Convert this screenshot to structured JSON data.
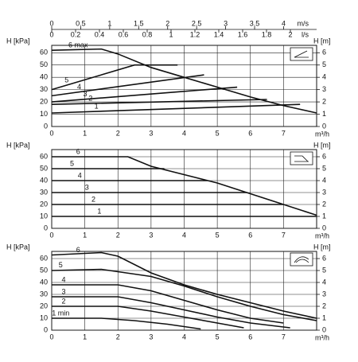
{
  "velocity_axis": {
    "label": "m/s",
    "xlim": [
      0,
      4.57
    ],
    "xticks": [
      0,
      0.5,
      1,
      1.5,
      2,
      2.5,
      3,
      3.5,
      4
    ]
  },
  "flow_ls_axis": {
    "label": "l/s",
    "xlim": [
      0,
      2.22
    ],
    "xticks": [
      0,
      0.2,
      0.4,
      0.6,
      0.8,
      1,
      1.2,
      1.4,
      1.6,
      1.8,
      2
    ]
  },
  "chart_data": [
    {
      "type": "line",
      "ylabel": "H [kPa]",
      "y2label": "H [m]",
      "xlabel": "m³/h",
      "grid": true,
      "color": "#111111",
      "xlim": [
        0,
        8
      ],
      "xticks": [
        0,
        1,
        2,
        3,
        4,
        5,
        6,
        7
      ],
      "ylim": [
        0,
        66
      ],
      "yticks": [
        0,
        10,
        20,
        30,
        40,
        50,
        60
      ],
      "y2lim": [
        0,
        6.6
      ],
      "y2ticks": [
        0,
        1,
        2,
        3,
        4,
        5,
        6
      ],
      "series": [
        {
          "name": "6 max",
          "x": [
            0,
            1.5,
            2,
            3,
            4,
            5,
            6,
            7,
            8
          ],
          "values": [
            62,
            63,
            59,
            48,
            40,
            32,
            24,
            17,
            11
          ]
        },
        {
          "name": "5",
          "x": [
            0,
            2.5,
            3.8
          ],
          "values": [
            30,
            50,
            50
          ]
        },
        {
          "name": "4",
          "x": [
            0,
            4.6
          ],
          "values": [
            25,
            42
          ]
        },
        {
          "name": "3",
          "x": [
            0,
            5.6
          ],
          "values": [
            20,
            32
          ]
        },
        {
          "name": "2",
          "x": [
            0,
            6.5
          ],
          "values": [
            18,
            22
          ]
        },
        {
          "name": "1",
          "x": [
            0,
            7.5
          ],
          "values": [
            11,
            18
          ]
        }
      ]
    },
    {
      "type": "line",
      "ylabel": "H [kPa]",
      "y2label": "H [m]",
      "xlabel": "m³/h",
      "grid": true,
      "color": "#111111",
      "xlim": [
        0,
        8
      ],
      "xticks": [
        0,
        1,
        2,
        3,
        4,
        5,
        6,
        7
      ],
      "ylim": [
        0,
        66
      ],
      "yticks": [
        0,
        10,
        20,
        30,
        40,
        50,
        60
      ],
      "y2lim": [
        0,
        6.6
      ],
      "y2ticks": [
        0,
        1,
        2,
        3,
        4,
        5,
        6
      ],
      "series": [
        {
          "name": "6",
          "x": [
            0,
            2.3,
            3,
            5,
            7,
            8
          ],
          "values": [
            60,
            60,
            52,
            38,
            20,
            11
          ]
        },
        {
          "name": "5",
          "x": [
            0,
            3.4
          ],
          "values": [
            50,
            50
          ]
        },
        {
          "name": "4",
          "x": [
            0,
            4.7
          ],
          "values": [
            40,
            40
          ]
        },
        {
          "name": "3",
          "x": [
            0,
            5.9
          ],
          "values": [
            30,
            30
          ]
        },
        {
          "name": "2",
          "x": [
            0,
            7
          ],
          "values": [
            20,
            20
          ]
        },
        {
          "name": "1",
          "x": [
            0,
            8
          ],
          "values": [
            10,
            10
          ]
        }
      ]
    },
    {
      "type": "line",
      "ylabel": "H [kPa]",
      "y2label": "H [m]",
      "xlabel": "m³/h",
      "grid": true,
      "color": "#111111",
      "xlim": [
        0,
        8
      ],
      "xticks": [
        0,
        1,
        2,
        3,
        4,
        5,
        6,
        7
      ],
      "ylim": [
        0,
        66
      ],
      "yticks": [
        0,
        10,
        20,
        30,
        40,
        50,
        60
      ],
      "y2lim": [
        0,
        6.6
      ],
      "y2ticks": [
        0,
        1,
        2,
        3,
        4,
        5,
        6
      ],
      "series": [
        {
          "name": "6",
          "x": [
            0,
            1.5,
            2,
            3,
            4,
            5,
            6,
            7,
            8
          ],
          "values": [
            63,
            65,
            62,
            48,
            38,
            30,
            23,
            16,
            10
          ]
        },
        {
          "name": "5",
          "x": [
            0,
            1.5,
            3,
            4,
            5,
            6,
            7,
            8
          ],
          "values": [
            50,
            51,
            45,
            37,
            28,
            20,
            13,
            8
          ]
        },
        {
          "name": "4",
          "x": [
            0,
            2,
            3,
            4,
            5,
            6,
            7
          ],
          "values": [
            38,
            38,
            33,
            25,
            17,
            10,
            6
          ]
        },
        {
          "name": "3",
          "x": [
            0,
            2,
            3,
            4,
            5,
            6,
            7.2
          ],
          "values": [
            28,
            28,
            23,
            17,
            11,
            6,
            2
          ]
        },
        {
          "name": "2",
          "x": [
            0,
            2,
            3,
            4,
            5,
            5.8
          ],
          "values": [
            20,
            20,
            16,
            11,
            6,
            2
          ]
        },
        {
          "name": "1 min",
          "x": [
            0,
            1.5,
            2.5,
            3.5,
            4.5
          ],
          "values": [
            10,
            10,
            8,
            5,
            1
          ]
        }
      ]
    }
  ]
}
